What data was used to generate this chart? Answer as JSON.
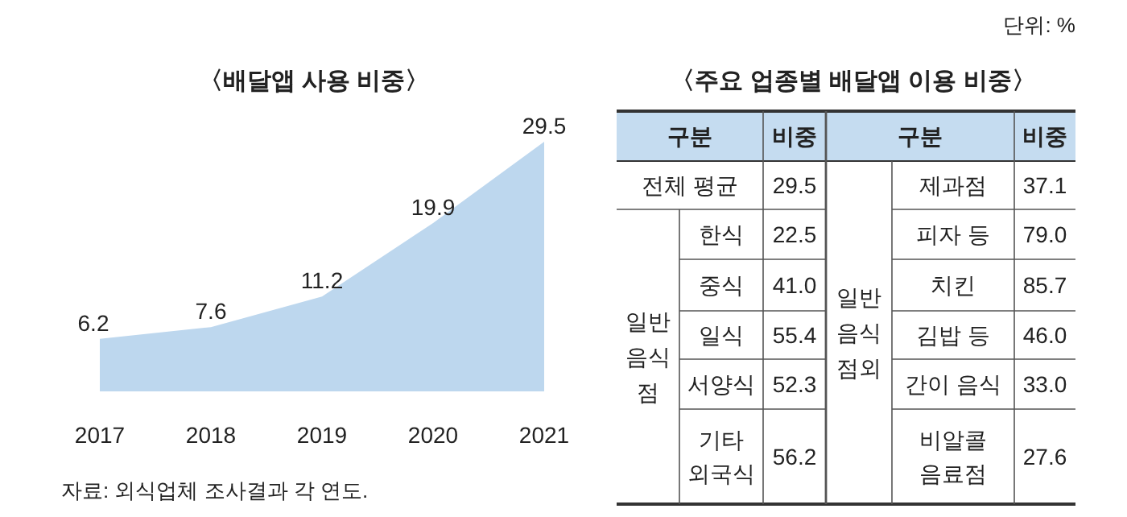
{
  "chart_data": [
    {
      "type": "area",
      "title": "〈배달앱 사용 비중〉",
      "categories": [
        "2017",
        "2018",
        "2019",
        "2020",
        "2021"
      ],
      "values": [
        6.2,
        7.6,
        11.2,
        19.9,
        29.5
      ],
      "color": "#bdd7ee",
      "data_labels": true,
      "annotations": [
        "자료: 외식업체 조사결과  각 연도."
      ]
    },
    {
      "type": "other",
      "title": "〈주요 업종별 배달앱 이용 비중〉",
      "categories": [
        "전체 평균",
        "한식",
        "중식",
        "일식",
        "서양식",
        "기타\n외국식",
        "제과점",
        "피자 등",
        "치킨",
        "김밥 등",
        "간이 음식",
        "비알콜\n음료점"
      ],
      "values": [
        29.5,
        22.5,
        41.0,
        55.4,
        52.3,
        56.2,
        37.1,
        79.0,
        85.7,
        46.0,
        33.0,
        27.6
      ],
      "value_labels": [
        "29.5",
        "22.5",
        "41.0",
        "55.4",
        "52.3",
        "56.2",
        "37.1",
        "79.0",
        "85.7",
        "46.0",
        "33.0",
        "27.6"
      ],
      "annotations": [
        "단위: %",
        "구분",
        "비중",
        "구분",
        "비중",
        "일반\n음식\n점",
        "일반\n음식\n점외"
      ]
    }
  ]
}
